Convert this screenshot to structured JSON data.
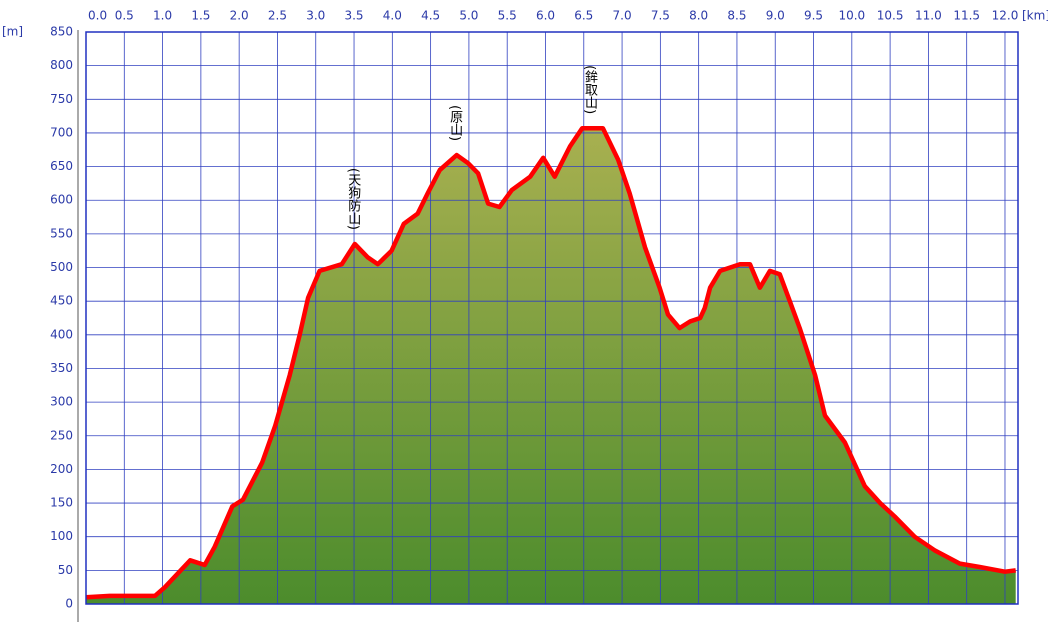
{
  "chart_data": {
    "type": "area",
    "x_label": "[km]",
    "y_label": "[m]",
    "x": [
      0,
      0.31,
      0.9,
      1.03,
      1.36,
      1.55,
      1.68,
      1.91,
      2.05,
      2.3,
      2.47,
      2.66,
      2.79,
      2.9,
      3.05,
      3.34,
      3.51,
      3.68,
      3.81,
      3.99,
      4.15,
      4.33,
      4.46,
      4.62,
      4.84,
      4.99,
      5.12,
      5.25,
      5.4,
      5.56,
      5.8,
      5.97,
      6.12,
      6.32,
      6.48,
      6.75,
      6.95,
      7.1,
      7.3,
      7.49,
      7.6,
      7.75,
      7.89,
      8.02,
      8.08,
      8.15,
      8.28,
      8.54,
      8.67,
      8.8,
      8.93,
      9.06,
      9.19,
      9.32,
      9.52,
      9.65,
      9.91,
      10.17,
      10.37,
      10.56,
      10.82,
      11.08,
      11.41,
      11.67,
      12.0,
      12.14
    ],
    "values": [
      10,
      12,
      12,
      25,
      65,
      58,
      85,
      145,
      155,
      210,
      265,
      340,
      400,
      455,
      495,
      505,
      535,
      515,
      505,
      525,
      565,
      580,
      610,
      645,
      667,
      655,
      640,
      595,
      590,
      615,
      635,
      663,
      635,
      680,
      707,
      707,
      660,
      610,
      530,
      470,
      430,
      410,
      420,
      425,
      440,
      470,
      495,
      505,
      505,
      470,
      495,
      490,
      450,
      410,
      340,
      280,
      240,
      175,
      150,
      130,
      100,
      80,
      60,
      55,
      48,
      50
    ],
    "line_color": "#ff0000",
    "fill_top": "#a8b050",
    "fill_bottom": "#4c8c2c",
    "xlim": [
      0,
      12.17
    ],
    "ylim": [
      0,
      850
    ],
    "xticks": [
      {
        "value": 0,
        "label": "0.0"
      },
      0.5,
      {
        "value": 1,
        "label": "1.0"
      },
      1.5,
      {
        "value": 2,
        "label": "2.0"
      },
      2.5,
      {
        "value": 3,
        "label": "3.0"
      },
      3.5,
      {
        "value": 4,
        "label": "4.0"
      },
      4.5,
      {
        "value": 5,
        "label": "5.0"
      },
      5.5,
      {
        "value": 6,
        "label": "6.0"
      },
      6.5,
      {
        "value": 7,
        "label": "7.0"
      },
      7.5,
      {
        "value": 8,
        "label": "8.0"
      },
      8.5,
      {
        "value": 9,
        "label": "9.0"
      },
      9.5,
      {
        "value": 10,
        "label": "10.0"
      },
      10.5,
      {
        "value": 11,
        "label": "11.0"
      },
      11.5,
      {
        "value": 12,
        "label": "12.0"
      }
    ],
    "yticks": [
      0,
      50,
      100,
      150,
      200,
      250,
      300,
      350,
      400,
      450,
      500,
      550,
      600,
      650,
      700,
      750,
      800,
      850
    ],
    "grid": true,
    "annotations": [
      {
        "text": "(天狗防山)",
        "x": 3.51,
        "y": 535
      },
      {
        "text": "(原山)",
        "x": 4.84,
        "y": 667
      },
      {
        "text": "(鉾取山)",
        "x": 6.6,
        "y": 707
      }
    ]
  }
}
